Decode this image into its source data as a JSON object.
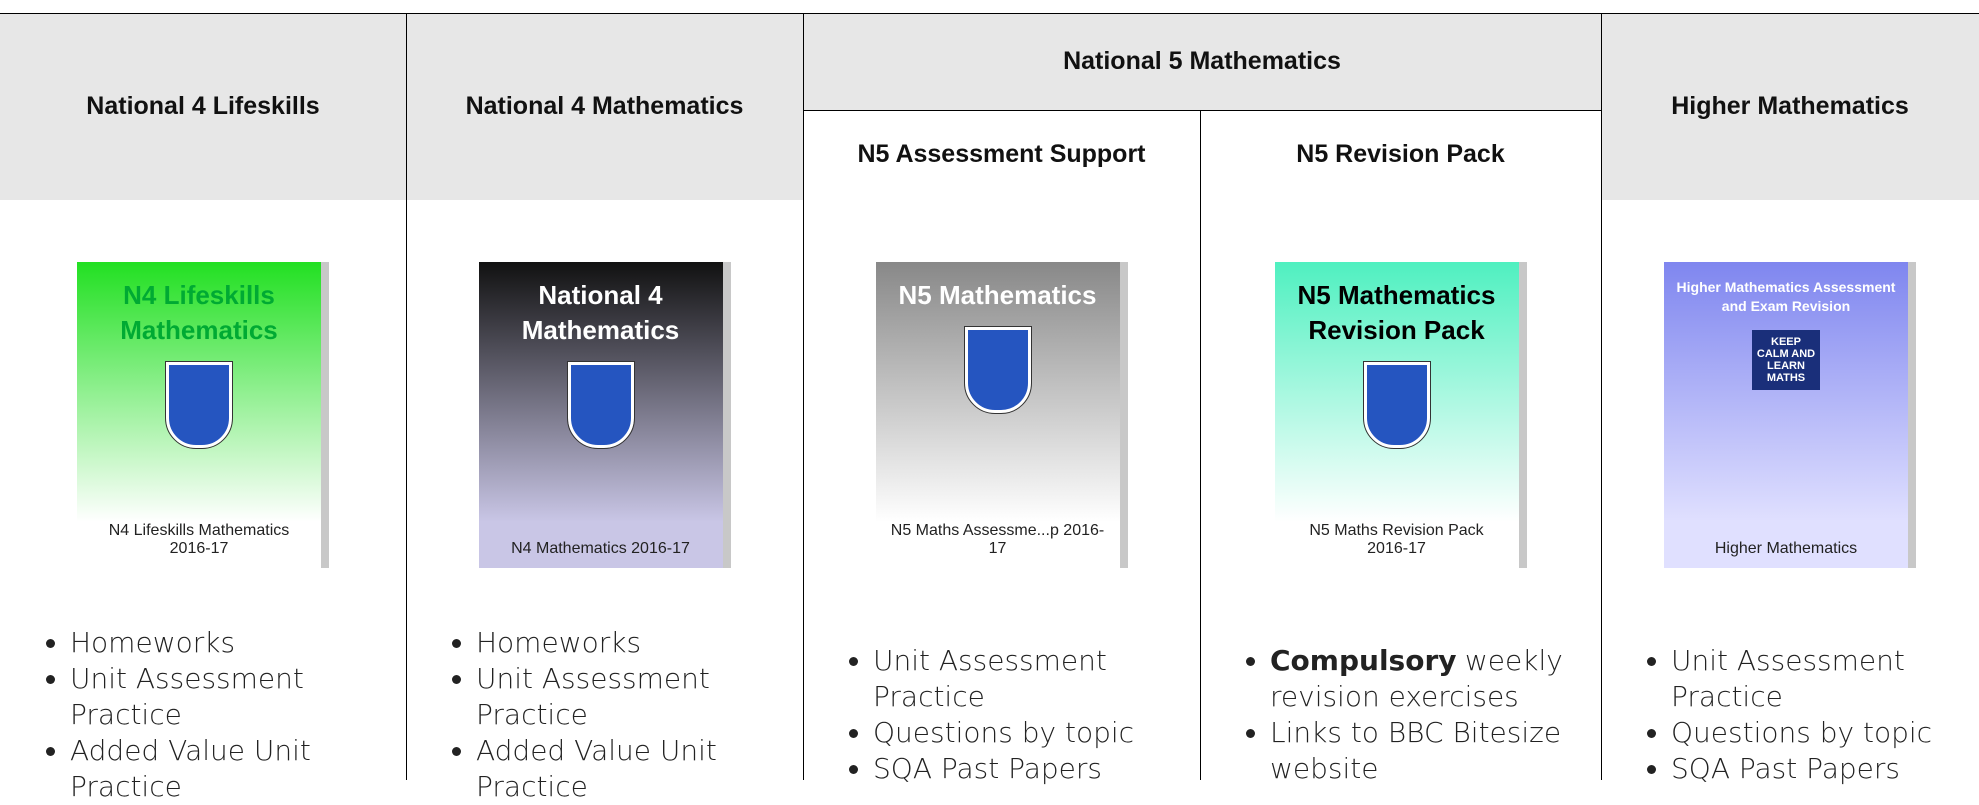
{
  "headers": [
    "National 4 Lifeskills",
    "National 4 Mathematics",
    "National 5 Mathematics",
    "Higher Mathematics"
  ],
  "subheaders": [
    "N5 Assessment Support",
    "N5 Revision Pack"
  ],
  "columns": [
    {
      "cover": {
        "title": "N4 Lifeskills Mathematics",
        "caption": "N4 Lifeskills Mathematics 2016-17"
      },
      "bullets": [
        {
          "text": "Homeworks"
        },
        {
          "text": "Unit Assessment Practice"
        },
        {
          "text": "Added Value Unit Practice"
        }
      ]
    },
    {
      "cover": {
        "title": "National 4 Mathematics",
        "caption": "N4 Mathematics 2016-17"
      },
      "bullets": [
        {
          "text": "Homeworks"
        },
        {
          "text": "Unit Assessment Practice"
        },
        {
          "text": "Added Value Unit Practice"
        }
      ]
    },
    {
      "cover": {
        "title": "N5 Mathematics",
        "caption": "N5 Maths Assessme...p 2016-17"
      },
      "bullets": [
        {
          "text": "Unit Assessment Practice"
        },
        {
          "text": "Questions by topic"
        },
        {
          "text": "SQA Past Papers"
        }
      ]
    },
    {
      "cover": {
        "title": "N5 Mathematics Revision Pack",
        "caption": "N5 Maths Revision Pack 2016-17"
      },
      "bullets": [
        {
          "bold": "Compulsory",
          "text": "weekly revision exercises"
        },
        {
          "text": "Links to BBC Bitesize website"
        }
      ]
    },
    {
      "cover": {
        "title": "Higher Mathematics Assessment and Exam Revision",
        "badge": "KEEP CALM AND LEARN MATHS",
        "caption": "Higher Mathematics"
      },
      "bullets": [
        {
          "text": "Unit Assessment Practice"
        },
        {
          "text": "Questions by topic"
        },
        {
          "text": "SQA Past Papers"
        }
      ]
    }
  ]
}
